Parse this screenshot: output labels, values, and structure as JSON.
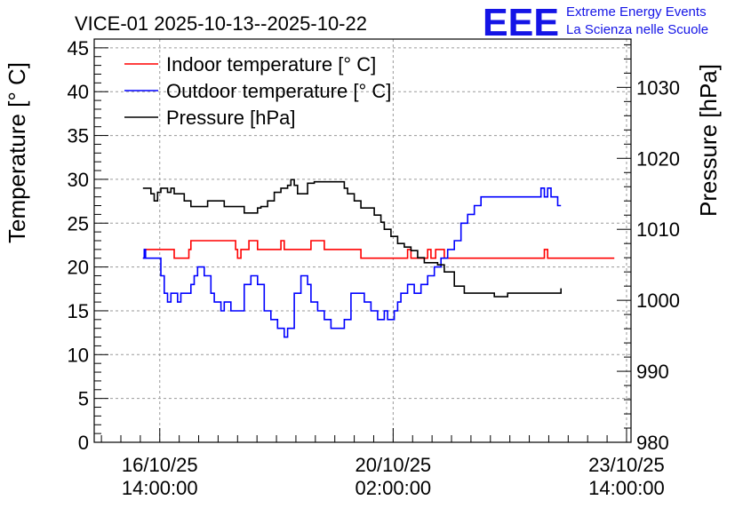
{
  "chart_data": {
    "type": "line",
    "title": "VICE-01 2025-10-13--2025-10-22",
    "logo": {
      "mark": "EEE",
      "line1": "Extreme Energy Events",
      "line2": "La Scienza nelle Scuole",
      "color": "#1414e6"
    },
    "x_axis": {
      "unit": "days since 2025-10-13 00:00",
      "range": [
        2.6,
        10.65
      ],
      "major_ticks": [
        3.583,
        7.083,
        10.583
      ],
      "tick_labels": [
        {
          "date": "16/10/25",
          "time": "14:00:00"
        },
        {
          "date": "20/10/25",
          "time": "02:00:00"
        },
        {
          "date": "23/10/25",
          "time": "14:00:00"
        }
      ]
    },
    "y_left": {
      "label": "Temperature [° C]",
      "range": [
        0,
        46
      ],
      "ticks": [
        0,
        5,
        10,
        15,
        20,
        25,
        30,
        35,
        40,
        45
      ],
      "tick_labels": [
        "0",
        "5",
        "10",
        "15",
        "20",
        "25",
        "30",
        "35",
        "40",
        "45"
      ]
    },
    "y_right": {
      "label": "Pressure [hPa]",
      "range": [
        980,
        1036.8
      ],
      "ticks": [
        980,
        990,
        1000,
        1010,
        1020,
        1030
      ],
      "tick_labels": [
        "980",
        "990",
        "1000",
        "1010",
        "1020",
        "1030"
      ]
    },
    "grid": true,
    "legend_position": "top-left",
    "series": [
      {
        "name": "Indoor temperature [° C]",
        "axis": "left",
        "color": "#ff0000",
        "x": [
          3.33,
          3.36,
          3.4,
          3.75,
          3.8,
          3.98,
          4.02,
          4.05,
          4.72,
          4.75,
          4.8,
          4.92,
          5.0,
          5.05,
          5.3,
          5.4,
          5.45,
          5.8,
          5.85,
          5.95,
          6.05,
          6.3,
          6.6,
          7.05,
          7.2,
          7.3,
          7.35,
          7.48,
          7.6,
          7.65,
          7.72,
          7.8,
          7.85,
          8.1,
          8.3,
          9.25,
          9.35,
          9.4,
          10.4
        ],
        "y": [
          21,
          22,
          22,
          22,
          21,
          21,
          22,
          23,
          22,
          21,
          22,
          23,
          23,
          22,
          22,
          23,
          22,
          22,
          23,
          23,
          22,
          22,
          21,
          21,
          21,
          22,
          21,
          21,
          22,
          21,
          22,
          22,
          21,
          21,
          21,
          21,
          22,
          21,
          21
        ]
      },
      {
        "name": "Outdoor temperature [° C]",
        "axis": "left",
        "color": "#0000ff",
        "x": [
          3.33,
          3.35,
          3.37,
          3.4,
          3.6,
          3.65,
          3.7,
          3.75,
          3.8,
          3.85,
          3.9,
          3.95,
          4.05,
          4.1,
          4.15,
          4.25,
          4.35,
          4.4,
          4.5,
          4.55,
          4.65,
          4.75,
          4.85,
          4.95,
          5.05,
          5.15,
          5.25,
          5.35,
          5.45,
          5.5,
          5.6,
          5.7,
          5.8,
          5.85,
          5.95,
          6.05,
          6.15,
          6.25,
          6.35,
          6.45,
          6.55,
          6.65,
          6.75,
          6.85,
          6.95,
          7.0,
          7.05,
          7.1,
          7.15,
          7.2,
          7.3,
          7.4,
          7.5,
          7.6,
          7.7,
          7.8,
          7.9,
          8.0,
          8.1,
          8.2,
          8.3,
          8.4,
          8.5,
          8.6,
          8.8,
          9.0,
          9.2,
          9.3,
          9.35,
          9.4,
          9.45,
          9.55,
          9.6
        ],
        "y": [
          21,
          22,
          21,
          21,
          19,
          17,
          16,
          17,
          17,
          16,
          17,
          17,
          18,
          19,
          20,
          19,
          17,
          16,
          15,
          16,
          15,
          15,
          18,
          19,
          18,
          15,
          14,
          13,
          12,
          13,
          17,
          19,
          18,
          16,
          15,
          14,
          13,
          13,
          14,
          17,
          17,
          16,
          15,
          14,
          15,
          14,
          14,
          15,
          16,
          17,
          18,
          17,
          18,
          19,
          20,
          21,
          22,
          23,
          25,
          26,
          27,
          28,
          28,
          28,
          28,
          28,
          28,
          29,
          28,
          29,
          28,
          27,
          27
        ]
      },
      {
        "name": "Pressure [hPa]",
        "axis": "right",
        "color": "#000000",
        "x": [
          3.33,
          3.45,
          3.5,
          3.55,
          3.6,
          3.7,
          3.75,
          3.8,
          3.9,
          3.95,
          4.05,
          4.2,
          4.3,
          4.55,
          4.7,
          4.85,
          4.95,
          5.0,
          5.05,
          5.1,
          5.2,
          5.3,
          5.4,
          5.5,
          5.55,
          5.6,
          5.65,
          5.75,
          5.8,
          5.9,
          6.05,
          6.2,
          6.35,
          6.4,
          6.5,
          6.6,
          6.7,
          6.8,
          6.9,
          6.95,
          7.05,
          7.15,
          7.25,
          7.35,
          7.45,
          7.55,
          7.65,
          7.75,
          7.85,
          8.0,
          8.15,
          8.4,
          8.6,
          8.8,
          9.0,
          9.2,
          9.4,
          9.6
        ],
        "y": [
          1015.8,
          1015.0,
          1014.0,
          1015.2,
          1015.8,
          1015.2,
          1015.8,
          1015.0,
          1015.0,
          1014.0,
          1013.2,
          1013.2,
          1014.0,
          1013.2,
          1013.2,
          1012.3,
          1012.3,
          1012.3,
          1013.0,
          1013.2,
          1014.0,
          1015.2,
          1015.8,
          1016.2,
          1017.0,
          1016.2,
          1015.0,
          1015.0,
          1016.5,
          1016.7,
          1016.7,
          1016.7,
          1015.8,
          1015.0,
          1014.0,
          1013.0,
          1013.0,
          1012.0,
          1011.0,
          1010.0,
          1009.0,
          1008.0,
          1007.5,
          1007.0,
          1006.0,
          1005.3,
          1005.3,
          1005.0,
          1004.0,
          1002.0,
          1001.0,
          1001.0,
          1000.5,
          1001.0,
          1001.0,
          1001.0,
          1001.0,
          1001.7
        ]
      }
    ]
  }
}
